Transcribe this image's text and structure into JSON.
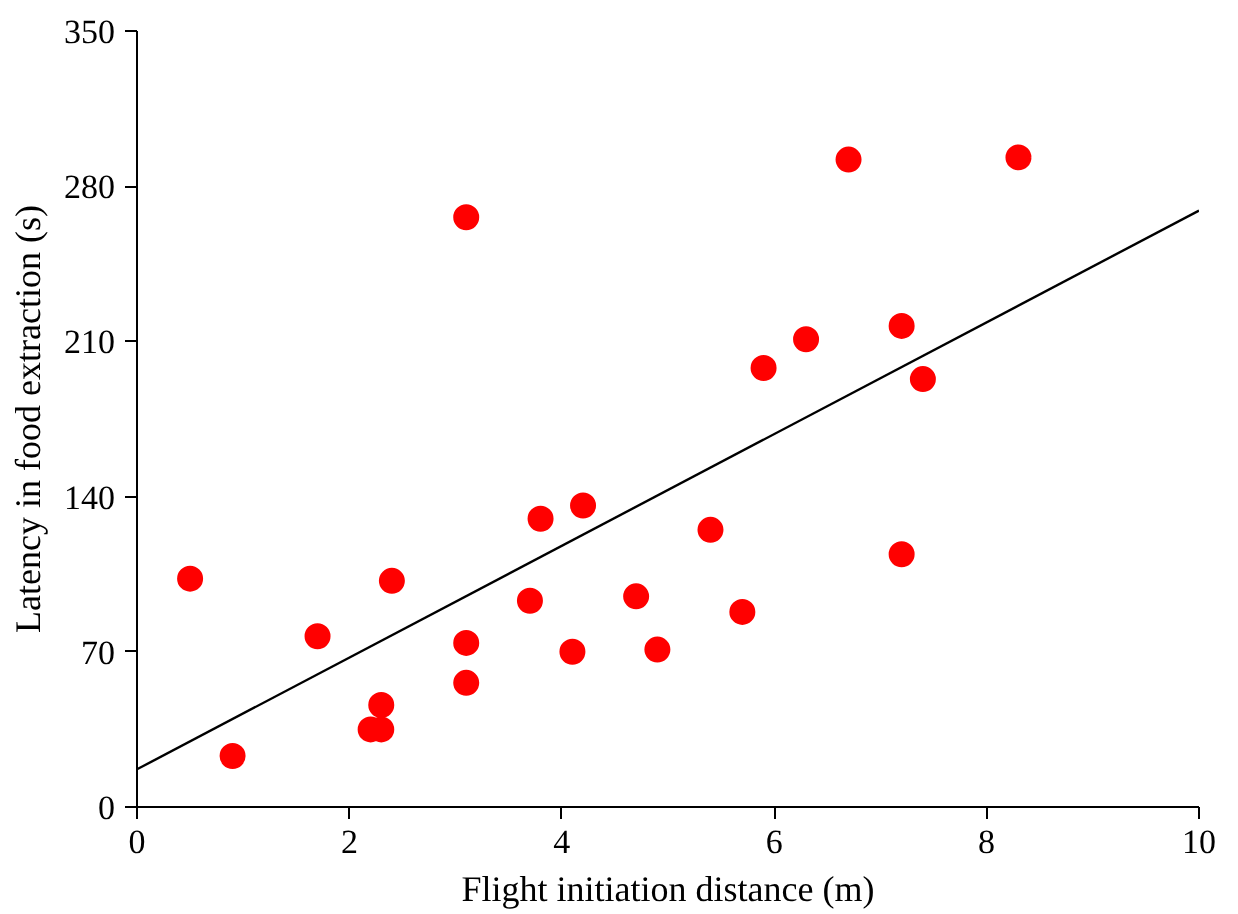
{
  "chart_data": {
    "type": "scatter",
    "xlabel": "Flight initiation distance (m)",
    "ylabel": "Latency in food extraction (s)",
    "xlim": [
      0,
      10
    ],
    "xticks": [
      0,
      2,
      4,
      6,
      8,
      10
    ],
    "ylim": [
      0,
      350
    ],
    "yticks": [
      0,
      70,
      140,
      210,
      280,
      350
    ],
    "grid": false,
    "series": [
      {
        "marker": "circle",
        "color": "#ff0000",
        "x": [
          0.5,
          0.9,
          1.7,
          2.2,
          2.3,
          2.3,
          2.4,
          3.1,
          3.1,
          3.1,
          3.7,
          3.8,
          4.1,
          4.2,
          4.7,
          4.9,
          5.4,
          5.7,
          5.9,
          6.3,
          6.7,
          7.2,
          7.2,
          7.4,
          8.3
        ],
        "values": [
          103,
          23,
          77,
          35,
          46,
          35,
          102,
          266,
          74,
          56,
          93,
          130,
          70,
          136,
          95,
          71,
          125,
          88,
          198,
          211,
          292,
          217,
          114,
          193,
          293
        ]
      },
      {
        "type": "line",
        "marker": "none",
        "color": "#000000",
        "x": [
          0,
          10
        ],
        "values": [
          17,
          269
        ]
      }
    ]
  }
}
